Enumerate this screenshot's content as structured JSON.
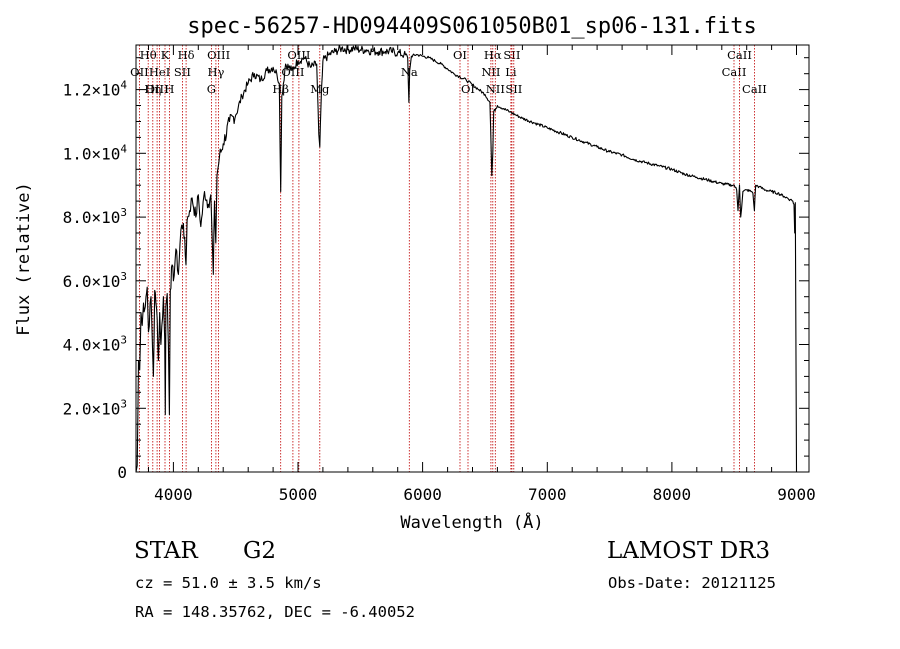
{
  "chart_data": {
    "type": "line",
    "title": "spec-56257-HD094409S061050B01_sp06-131.fits",
    "xlabel": "Wavelength (Å)",
    "ylabel": "Flux (relative)",
    "xlim": [
      3700,
      9100
    ],
    "ylim": [
      0,
      13400
    ],
    "x_ticks": [
      {
        "value": 4000,
        "label": "4000"
      },
      {
        "value": 5000,
        "label": "5000"
      },
      {
        "value": 6000,
        "label": "6000"
      },
      {
        "value": 7000,
        "label": "7000"
      },
      {
        "value": 8000,
        "label": "8000"
      },
      {
        "value": 9000,
        "label": "9000"
      }
    ],
    "y_ticks": [
      {
        "value": 0,
        "mant": "0",
        "exp": ""
      },
      {
        "value": 2000,
        "mant": "2.0×10",
        "exp": "3"
      },
      {
        "value": 4000,
        "mant": "4.0×10",
        "exp": "3"
      },
      {
        "value": 6000,
        "mant": "6.0×10",
        "exp": "3"
      },
      {
        "value": 8000,
        "mant": "8.0×10",
        "exp": "3"
      },
      {
        "value": 10000,
        "mant": "1.0×10",
        "exp": "4"
      },
      {
        "value": 12000,
        "mant": "1.2×10",
        "exp": "4"
      }
    ],
    "series": [
      {
        "name": "flux",
        "x": [
          3700,
          3710,
          3720,
          3730,
          3740,
          3750,
          3760,
          3770,
          3780,
          3790,
          3800,
          3820,
          3840,
          3850,
          3860,
          3870,
          3880,
          3890,
          3900,
          3920,
          3930,
          3935,
          3940,
          3950,
          3960,
          3968,
          3975,
          3990,
          4000,
          4020,
          4040,
          4060,
          4080,
          4101,
          4110,
          4130,
          4150,
          4180,
          4200,
          4220,
          4250,
          4280,
          4300,
          4320,
          4330,
          4340,
          4350,
          4370,
          4400,
          4450,
          4500,
          4550,
          4600,
          4650,
          4700,
          4750,
          4800,
          4830,
          4850,
          4861,
          4870,
          4900,
          4950,
          5000,
          5050,
          5100,
          5150,
          5167,
          5175,
          5184,
          5200,
          5250,
          5300,
          5350,
          5400,
          5450,
          5500,
          5550,
          5600,
          5650,
          5700,
          5750,
          5800,
          5850,
          5880,
          5890,
          5896,
          5910,
          5950,
          6000,
          6050,
          6100,
          6150,
          6200,
          6250,
          6300,
          6350,
          6400,
          6450,
          6500,
          6540,
          6555,
          6563,
          6570,
          6600,
          6650,
          6700,
          6750,
          6800,
          6900,
          7000,
          7100,
          7200,
          7300,
          7400,
          7500,
          7600,
          7700,
          7800,
          7900,
          8000,
          8100,
          8200,
          8300,
          8400,
          8480,
          8500,
          8520,
          8530,
          8542,
          8552,
          8570,
          8600,
          8640,
          8650,
          8662,
          8672,
          8700,
          8750,
          8800,
          8850,
          8900,
          8950,
          8970,
          8980,
          8985,
          8990,
          9000
        ],
        "y": [
          0,
          200,
          3500,
          3200,
          5000,
          4600,
          5300,
          5100,
          5500,
          5800,
          4400,
          5500,
          3000,
          5700,
          5300,
          4800,
          3500,
          5000,
          4000,
          5500,
          4200,
          1800,
          5200,
          5600,
          4000,
          1800,
          5700,
          6500,
          6000,
          7000,
          6200,
          7600,
          7800,
          6500,
          7900,
          8200,
          8600,
          8000,
          8700,
          7700,
          8800,
          8400,
          8700,
          6200,
          8500,
          7200,
          9300,
          9900,
          10300,
          11000,
          11200,
          11800,
          12200,
          12500,
          12300,
          12600,
          12700,
          12500,
          12200,
          8800,
          11800,
          12800,
          12600,
          12900,
          13000,
          12700,
          12800,
          10600,
          10200,
          11500,
          12900,
          13100,
          13200,
          13300,
          13250,
          13300,
          13250,
          13250,
          13200,
          13200,
          13200,
          13200,
          13150,
          13100,
          13000,
          11600,
          12600,
          13050,
          13100,
          13050,
          13000,
          12900,
          12800,
          12650,
          12500,
          12400,
          12300,
          12150,
          12000,
          11850,
          11600,
          9300,
          10000,
          11300,
          11500,
          11400,
          11300,
          11200,
          11100,
          10950,
          10800,
          10650,
          10500,
          10350,
          10200,
          10050,
          9950,
          9800,
          9700,
          9600,
          9500,
          9350,
          9250,
          9150,
          9050,
          9000,
          9000,
          8850,
          8200,
          9000,
          8000,
          8800,
          8850,
          8800,
          8750,
          8200,
          9000,
          8950,
          8850,
          8800,
          8750,
          8650,
          8550,
          8500,
          8400,
          7500,
          8450,
          0
        ]
      }
    ],
    "lines": [
      {
        "wl": 3727,
        "label": "OII",
        "row": 1
      },
      {
        "wl": 3798,
        "label": "Hθ",
        "row": 0
      },
      {
        "wl": 3835,
        "label": "Hη",
        "row": 2
      },
      {
        "wl": 3869,
        "label": "OIII",
        "row": 2
      },
      {
        "wl": 3889,
        "label": "HeI",
        "row": 1
      },
      {
        "wl": 3933,
        "label": "K",
        "row": 0
      },
      {
        "wl": 3968,
        "label": "H",
        "row": 2
      },
      {
        "wl": 4072,
        "label": "SII",
        "row": 1
      },
      {
        "wl": 4102,
        "label": "Hδ",
        "row": 0
      },
      {
        "wl": 4305,
        "label": "G",
        "row": 2
      },
      {
        "wl": 4341,
        "label": "Hγ",
        "row": 1
      },
      {
        "wl": 4363,
        "label": "OIII",
        "row": 0
      },
      {
        "wl": 4861,
        "label": "Hβ",
        "row": 2
      },
      {
        "wl": 4959,
        "label": "OIII",
        "row": 1
      },
      {
        "wl": 5007,
        "label": "OIII",
        "row": 0
      },
      {
        "wl": 5175,
        "label": "Mg",
        "row": 2
      },
      {
        "wl": 5893,
        "label": "Na",
        "row": 1
      },
      {
        "wl": 6300,
        "label": "OI",
        "row": 0
      },
      {
        "wl": 6364,
        "label": "OI",
        "row": 2
      },
      {
        "wl": 6548,
        "label": "NII",
        "row": 1
      },
      {
        "wl": 6563,
        "label": "Hα",
        "row": 0
      },
      {
        "wl": 6583,
        "label": "NII",
        "row": 2
      },
      {
        "wl": 6708,
        "label": "Li",
        "row": 1
      },
      {
        "wl": 6716,
        "label": "SII",
        "row": 0
      },
      {
        "wl": 6731,
        "label": "SII",
        "row": 2
      },
      {
        "wl": 8498,
        "label": "CaII",
        "row": 1
      },
      {
        "wl": 8542,
        "label": "CaII",
        "row": 0
      },
      {
        "wl": 8662,
        "label": "CaII",
        "row": 2
      }
    ]
  },
  "info": {
    "object_type": "STAR",
    "subclass": "G2",
    "cz": "cz = 51.0 ± 3.5 km/s",
    "coords": "RA = 148.35762, DEC =  -6.40052",
    "survey": "LAMOST DR3",
    "obs_date": "Obs-Date: 20121125"
  }
}
